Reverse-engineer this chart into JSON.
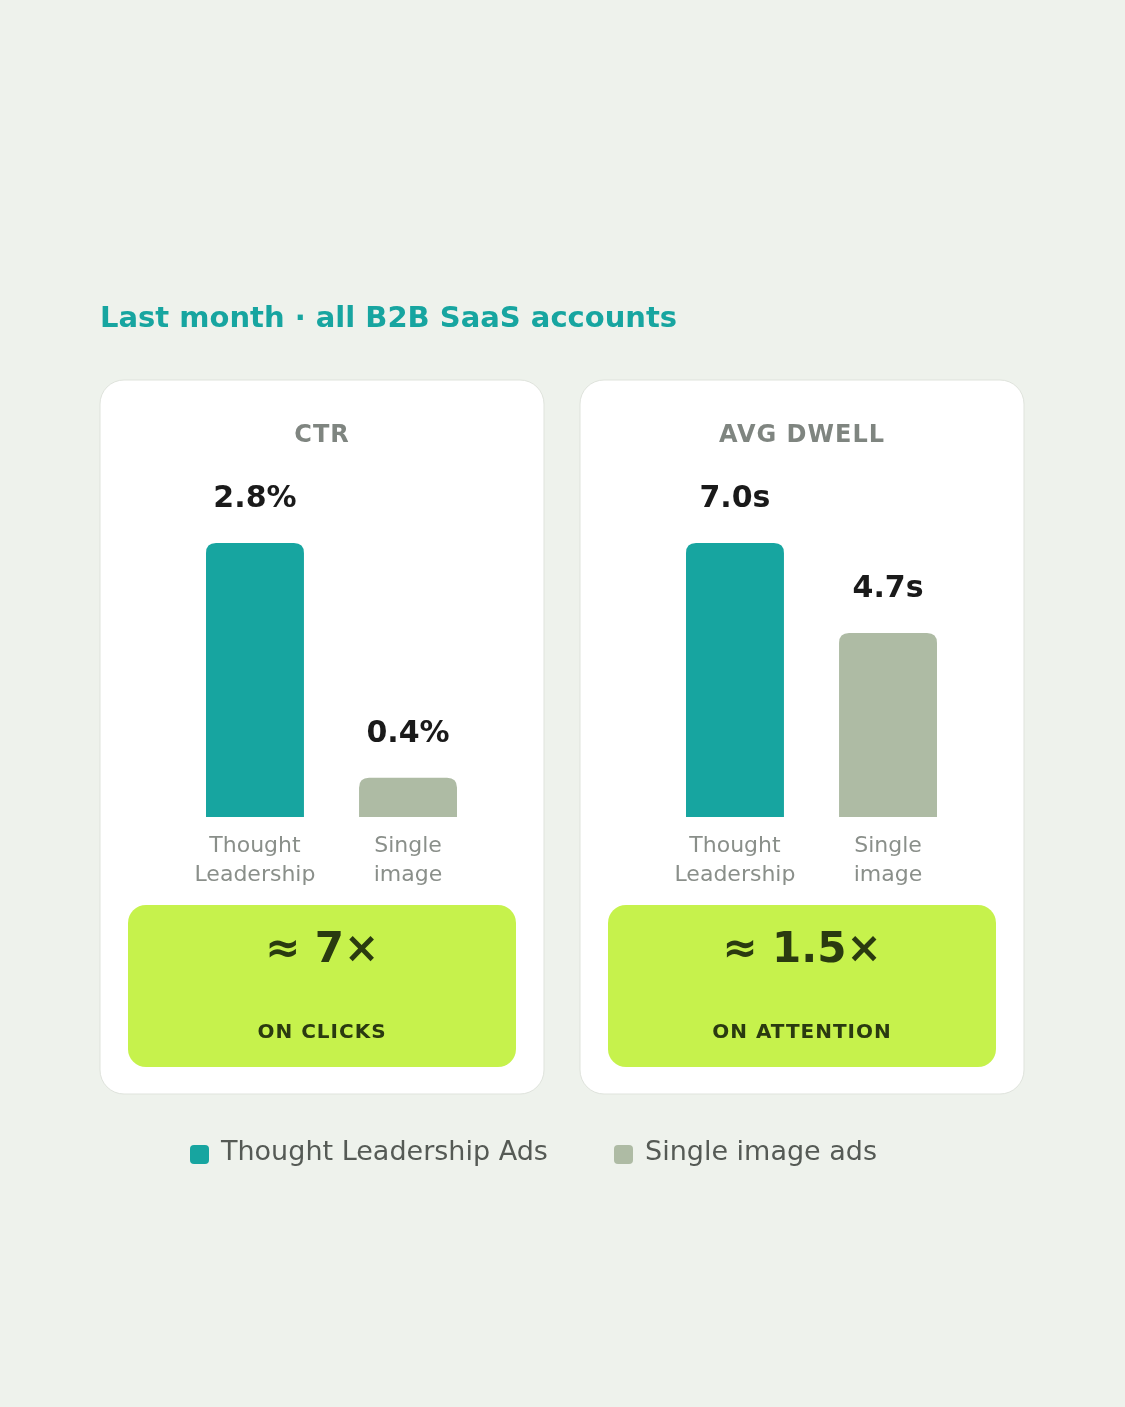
{
  "chart_data": [
    {
      "type": "bar",
      "title": "CTR",
      "subtitle": "Last month · all B2B SaaS accounts",
      "categories": [
        "Thought Leadership",
        "Single image"
      ],
      "series": [
        {
          "name": "Thought Leadership Ads",
          "color": "#17a5a0",
          "values": [
            2.8,
            null
          ],
          "value_labels": [
            "2.8%",
            null
          ]
        },
        {
          "name": "Single image ads",
          "color": "#aebba4",
          "values": [
            null,
            0.4
          ],
          "value_labels": [
            null,
            "0.4%"
          ]
        }
      ],
      "annotations": [
        "≈ 7×",
        "ON CLICKS"
      ],
      "legend": "bottom"
    },
    {
      "type": "bar",
      "title": "AVG DWELL",
      "categories": [
        "Thought Leadership",
        "Single image"
      ],
      "series": [
        {
          "color": "#17a5a0",
          "values": [
            7.0,
            null
          ],
          "value_labels": [
            "7.0s",
            null
          ]
        },
        {
          "color": "#aebba4",
          "values": [
            null,
            4.7
          ],
          "value_labels": [
            null,
            "4.7s"
          ]
        }
      ],
      "annotations": [
        "≈ 1.5×",
        "ON ATTENTION"
      ]
    }
  ]
}
